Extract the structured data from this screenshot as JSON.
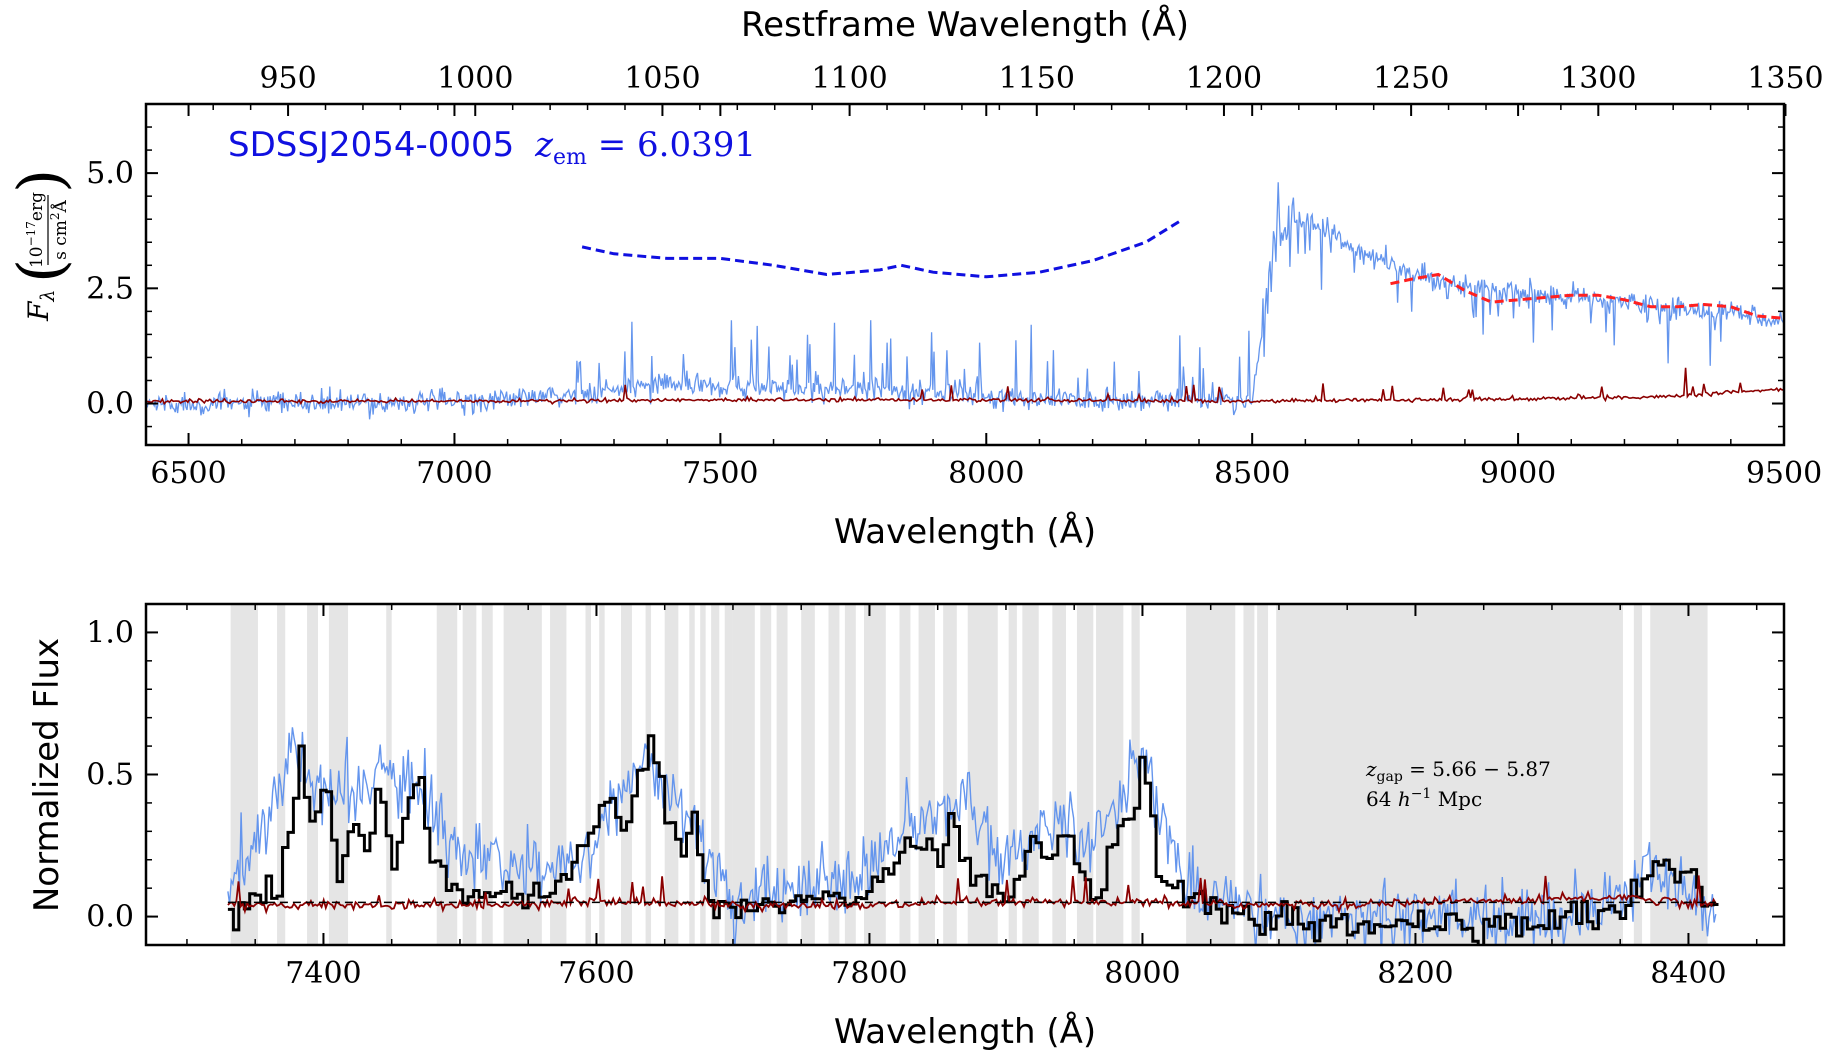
{
  "chart_data": [
    {
      "type": "line",
      "panel": "top",
      "title": "",
      "xlabel": "Wavelength (Å)",
      "xlim": [
        6420,
        9500
      ],
      "xticks": [
        6500,
        7000,
        7500,
        8000,
        8500,
        9000,
        9500
      ],
      "ylabel": "F_λ (10^{-17} erg / s cm^2 Å)",
      "ylabel_parts": {
        "symbol": "F",
        "subscript": "λ",
        "numerator": "10",
        "num_exp": "−17",
        "num_unit": "erg",
        "denominator": "s cm",
        "den_exp": "2",
        "den_unit": "Å"
      },
      "ylim": [
        -0.9,
        6.5
      ],
      "yticks": [
        0.0,
        2.5,
        5.0
      ],
      "ytick_labels": [
        "0.0",
        "2.5",
        "5.0"
      ],
      "secondary_xaxis": {
        "label": "Restframe Wavelength (Å)",
        "ticks": [
          950,
          1000,
          1050,
          1100,
          1150,
          1200,
          1250,
          1300,
          1350
        ],
        "redshift": 6.0391
      },
      "annotation": {
        "name": "SDSSJ2054-0005",
        "z_label": "z",
        "z_sub": "em",
        "z_eq": " = 6.0391",
        "color": "#1010e0"
      },
      "series": [
        {
          "color": "#6495ed",
          "style": "flux",
          "x": [
            6420,
            6800,
            7000,
            7200,
            7300,
            7400,
            7500,
            7600,
            7700,
            7800,
            7900,
            8000,
            8100,
            8200,
            8300,
            8400,
            8500,
            8520,
            8550,
            8600,
            8650,
            8700,
            8800,
            8900,
            9000,
            9100,
            9200,
            9300,
            9400,
            9500
          ],
          "y": [
            0.0,
            0.0,
            0.05,
            0.15,
            0.3,
            0.45,
            0.35,
            0.35,
            0.3,
            0.3,
            0.25,
            0.15,
            0.1,
            0.08,
            0.05,
            0.1,
            0.05,
            1.5,
            3.8,
            4.0,
            3.7,
            3.3,
            2.8,
            2.6,
            2.4,
            2.3,
            2.2,
            2.05,
            2.0,
            1.8
          ]
        },
        {
          "color": "#8b0000",
          "style": "error",
          "x": [
            6420,
            7000,
            7500,
            8000,
            8500,
            9000,
            9300,
            9400,
            9500
          ],
          "y": [
            0.05,
            0.05,
            0.08,
            0.08,
            0.05,
            0.1,
            0.15,
            0.25,
            0.3
          ]
        },
        {
          "color": "#ff2020",
          "style": "dashed",
          "x": [
            8760,
            8800,
            8850,
            8900,
            8950,
            9000,
            9050,
            9100,
            9150,
            9200,
            9250,
            9300,
            9350,
            9400,
            9450,
            9500
          ],
          "y": [
            2.6,
            2.7,
            2.8,
            2.45,
            2.2,
            2.25,
            2.3,
            2.35,
            2.35,
            2.25,
            2.1,
            2.1,
            2.15,
            2.1,
            1.9,
            1.85
          ]
        },
        {
          "color": "#1010e0",
          "style": "dashed",
          "x": [
            7240,
            7300,
            7400,
            7500,
            7600,
            7700,
            7800,
            7840,
            7900,
            8000,
            8100,
            8200,
            8300,
            8370
          ],
          "y": [
            3.4,
            3.25,
            3.15,
            3.15,
            3.0,
            2.8,
            2.9,
            3.0,
            2.85,
            2.75,
            2.85,
            3.1,
            3.5,
            4.0
          ]
        }
      ]
    },
    {
      "type": "line",
      "panel": "bottom",
      "title": "",
      "xlabel": "Wavelength (Å)",
      "xlim": [
        7270,
        8470
      ],
      "xticks": [
        7400,
        7600,
        7800,
        8000,
        8200,
        8400
      ],
      "ylabel": "Normalized Flux",
      "ylim": [
        -0.1,
        1.1
      ],
      "yticks": [
        0.0,
        0.5,
        1.0
      ],
      "ytick_labels": [
        "0.0",
        "0.5",
        "1.0"
      ],
      "annotation": {
        "line1_z": "z",
        "line1_sub": "gap",
        "line1_eq": " = 5.66 − 5.87",
        "line2_num": "64 ",
        "line2_h": "h",
        "line2_exp": "−1",
        "line2_unit": " Mpc"
      },
      "shaded_regions": [
        [
          7332,
          7352
        ],
        [
          7366,
          7372
        ],
        [
          7388,
          7396
        ],
        [
          7404,
          7418
        ],
        [
          7446,
          7450
        ],
        [
          7483,
          7498
        ],
        [
          7502,
          7512
        ],
        [
          7516,
          7524
        ],
        [
          7532,
          7560
        ],
        [
          7566,
          7578
        ],
        [
          7592,
          7596
        ],
        [
          7602,
          7606
        ],
        [
          7618,
          7626
        ],
        [
          7636,
          7640
        ],
        [
          7650,
          7660
        ],
        [
          7668,
          7672
        ],
        [
          7676,
          7680
        ],
        [
          7684,
          7690
        ],
        [
          7694,
          7700
        ],
        [
          7700,
          7716
        ],
        [
          7720,
          7728
        ],
        [
          7732,
          7740
        ],
        [
          7750,
          7760
        ],
        [
          7770,
          7778
        ],
        [
          7782,
          7790
        ],
        [
          7796,
          7812
        ],
        [
          7822,
          7830
        ],
        [
          7836,
          7848
        ],
        [
          7854,
          7864
        ],
        [
          7872,
          7894
        ],
        [
          7902,
          7908
        ],
        [
          7912,
          7924
        ],
        [
          7934,
          7944
        ],
        [
          7952,
          7964
        ],
        [
          7966,
          7986
        ],
        [
          7992,
          7998
        ],
        [
          8032,
          8068
        ],
        [
          8074,
          8082
        ],
        [
          8084,
          8092
        ],
        [
          8098,
          8352
        ],
        [
          8360,
          8366
        ],
        [
          8372,
          8414
        ]
      ],
      "series": [
        {
          "color": "#6495ed",
          "style": "flux_raw",
          "x": [
            7330,
            7380,
            7400,
            7440,
            7460,
            7470,
            7500,
            7550,
            7600,
            7615,
            7640,
            7660,
            7700,
            7750,
            7800,
            7820,
            7850,
            7870,
            7900,
            7920,
            7940,
            7960,
            8000,
            8030,
            8100,
            8200,
            8300,
            8350,
            8370,
            8420
          ],
          "y": [
            0.05,
            0.6,
            0.4,
            0.5,
            0.45,
            0.45,
            0.2,
            0.15,
            0.25,
            0.45,
            0.55,
            0.4,
            0.05,
            0.1,
            0.15,
            0.3,
            0.35,
            0.4,
            0.2,
            0.3,
            0.35,
            0.2,
            0.6,
            0.1,
            0.0,
            0.0,
            0.0,
            0.05,
            0.2,
            0.0
          ]
        },
        {
          "color": "#000000",
          "style": "step",
          "x": [
            7330,
            7350,
            7366,
            7376,
            7382,
            7390,
            7400,
            7410,
            7420,
            7430,
            7440,
            7450,
            7460,
            7470,
            7480,
            7500,
            7530,
            7560,
            7590,
            7600,
            7610,
            7620,
            7630,
            7640,
            7650,
            7660,
            7670,
            7680,
            7700,
            7750,
            7780,
            7800,
            7820,
            7840,
            7850,
            7860,
            7870,
            7880,
            7900,
            7920,
            7930,
            7940,
            7950,
            7960,
            7990,
            8000,
            8010,
            8030,
            8100,
            8200,
            8300,
            8350,
            8370,
            8380,
            8420
          ],
          "y": [
            0.02,
            0.05,
            0.1,
            0.4,
            0.6,
            0.3,
            0.5,
            0.15,
            0.35,
            0.25,
            0.43,
            0.2,
            0.4,
            0.45,
            0.15,
            0.05,
            0.1,
            0.05,
            0.25,
            0.35,
            0.45,
            0.25,
            0.5,
            0.58,
            0.4,
            0.2,
            0.35,
            0.05,
            0.02,
            0.06,
            0.05,
            0.1,
            0.2,
            0.28,
            0.18,
            0.38,
            0.15,
            0.1,
            0.05,
            0.3,
            0.15,
            0.35,
            0.2,
            0.05,
            0.35,
            0.6,
            0.15,
            0.05,
            -0.02,
            -0.03,
            -0.02,
            0.02,
            0.15,
            0.22,
            0.0
          ]
        },
        {
          "color": "#8b0000",
          "style": "error",
          "x": [
            7330,
            7500,
            7600,
            7700,
            7800,
            7900,
            8000,
            8100,
            8200,
            8300,
            8350,
            8420
          ],
          "y": [
            0.04,
            0.04,
            0.05,
            0.04,
            0.04,
            0.05,
            0.05,
            0.04,
            0.05,
            0.06,
            0.07,
            0.04
          ]
        },
        {
          "color": "#000000",
          "style": "mean_dashed",
          "x": [
            7330,
            8420
          ],
          "y": [
            0.05,
            0.05
          ]
        }
      ]
    }
  ]
}
